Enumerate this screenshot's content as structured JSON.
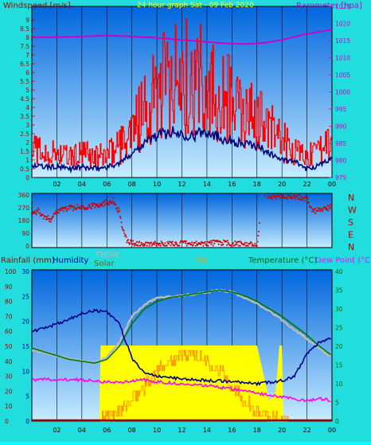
{
  "colors": {
    "background": "#22dddd",
    "plot_top": "#0088ee",
    "plot_bottom": "#bfe6ff",
    "wind_avg": "#00007a",
    "wind_gust": "#ff0000",
    "barometer": "#cc00cc",
    "direction": "#cc0000",
    "humidity": "#00008c",
    "temperature": "#007700",
    "dew_point": "#ff00ff",
    "thsw": "#bbbbbb",
    "solar": "#ffff00",
    "uv": "#ff9900",
    "rainfall": "#990000"
  },
  "chart_data": [
    {
      "type": "line",
      "title": "24 hour graph Sat - 09 Feb 2020",
      "ylabel_left": "Windspeed [m/s]",
      "ylabel_right": "Barometer [hpa]",
      "ylim_left": [
        0,
        9.5
      ],
      "ylim_right": [
        975,
        1025
      ],
      "yticks_left": [
        "0",
        "0.5",
        "1",
        "1.5",
        "2",
        "2.5",
        "3",
        "3.5",
        "4",
        "4.5",
        "5",
        "5.5",
        "6",
        "6.5",
        "7",
        "7.5",
        "8",
        "8.5",
        "9"
      ],
      "yticks_right": [
        "975",
        "980",
        "985",
        "990",
        "995",
        "1000",
        "1005",
        "1010",
        "1015",
        "1020",
        "1025"
      ],
      "x_ticks": [
        "02",
        "04",
        "06",
        "08",
        "10",
        "12",
        "14",
        "16",
        "18",
        "20",
        "22",
        "00"
      ],
      "x_range_hours": [
        0,
        24
      ],
      "series": [
        {
          "name": "Barometer",
          "axis": "right",
          "x": [
            0,
            2,
            4,
            6,
            8,
            10,
            12,
            14,
            15.5,
            17,
            18.5,
            20,
            22,
            24
          ],
          "values": [
            1016,
            1016,
            1016.2,
            1016.5,
            1016.2,
            1015.8,
            1015.2,
            1014.6,
            1014.2,
            1014.0,
            1014.3,
            1015.2,
            1017.0,
            1018.2
          ]
        },
        {
          "name": "Windspeed",
          "axis": "left",
          "x": [
            0,
            1,
            2,
            3,
            4,
            5,
            6,
            7,
            8,
            9,
            10,
            11,
            12,
            13,
            14,
            15,
            16,
            17,
            18,
            19,
            20,
            21,
            22,
            23,
            24
          ],
          "values": [
            0.7,
            0.6,
            0.6,
            0.5,
            0.6,
            0.5,
            0.6,
            0.8,
            1.4,
            2.0,
            2.4,
            2.6,
            2.5,
            2.4,
            2.7,
            2.3,
            2.1,
            1.9,
            1.8,
            1.4,
            1.0,
            0.9,
            0.5,
            0.7,
            1.1
          ]
        },
        {
          "name": "Gust",
          "axis": "left",
          "x": [
            0,
            1,
            2,
            3,
            4,
            5,
            6,
            7,
            8,
            9,
            10,
            11,
            12,
            13,
            14,
            15,
            16,
            17,
            18,
            19,
            20,
            21,
            22,
            23,
            24
          ],
          "values": [
            1.8,
            1.6,
            1.7,
            1.4,
            1.6,
            1.4,
            1.6,
            2.0,
            3.3,
            4.3,
            5.6,
            6.6,
            7.0,
            6.2,
            6.8,
            5.6,
            5.0,
            4.2,
            3.8,
            3.2,
            2.4,
            1.9,
            1.4,
            1.7,
            2.2
          ]
        }
      ]
    },
    {
      "type": "scatter",
      "ylabel_right_letters": [
        "N",
        "W",
        "S",
        "E",
        "N"
      ],
      "yticks_left": [
        "0",
        "90",
        "180",
        "270",
        "360"
      ],
      "ylim": [
        0,
        360
      ],
      "x_range_hours": [
        0,
        24
      ],
      "series": [
        {
          "name": "Wind direction",
          "x": [
            0,
            0.5,
            1,
            1.5,
            2,
            3,
            4,
            5,
            6,
            6.5,
            7,
            7.3,
            7.6,
            8,
            9,
            10,
            11,
            12,
            13,
            14,
            15,
            16,
            17,
            18,
            18.5,
            19,
            20,
            21,
            22,
            22.5,
            23,
            24
          ],
          "values": [
            230,
            250,
            200,
            190,
            250,
            270,
            275,
            285,
            310,
            320,
            240,
            100,
            40,
            20,
            10,
            12,
            15,
            18,
            12,
            20,
            25,
            15,
            10,
            5,
            350,
            345,
            355,
            350,
            330,
            240,
            260,
            275
          ]
        }
      ]
    },
    {
      "type": "line",
      "labels": {
        "rainfall": "Rainfall (mm)",
        "humidity": "Humidity",
        "thsw": "THSW",
        "solar": "Solar",
        "uv": "UV",
        "temperature": "Temperature (°C)",
        "dew_point": "Dew Point (°C)"
      },
      "yticks_rain": [
        "0",
        "10",
        "20",
        "30",
        "40",
        "50",
        "60",
        "70",
        "80",
        "90",
        "100"
      ],
      "yticks_hum": [
        "0",
        "5",
        "10",
        "15",
        "20",
        "25",
        "30"
      ],
      "yticks_temp": [
        "0",
        "5",
        "10",
        "15",
        "20",
        "25",
        "30",
        "35",
        "40"
      ],
      "ylim_humidity": [
        0,
        100
      ],
      "ylim_temperature": [
        0,
        40
      ],
      "x_range_hours": [
        0,
        24
      ],
      "series": [
        {
          "name": "Humidity",
          "x": [
            0,
            1,
            2,
            3,
            4,
            5,
            6,
            7,
            8,
            9,
            10,
            11,
            12,
            13,
            14,
            15,
            16,
            17,
            18,
            19,
            20,
            21,
            22,
            23,
            24
          ],
          "values": [
            60,
            62,
            65,
            68,
            72,
            74,
            73,
            65,
            42,
            32,
            30,
            29,
            28,
            28,
            27,
            27,
            26,
            26,
            25,
            26,
            27,
            30,
            45,
            53,
            55
          ]
        },
        {
          "name": "Temperature",
          "x": [
            0,
            1,
            2,
            3,
            4,
            5,
            6,
            7,
            8,
            9,
            10,
            11,
            12,
            13,
            14,
            15,
            16,
            17,
            18,
            19,
            20,
            21,
            22,
            23,
            24
          ],
          "values": [
            19.5,
            18.5,
            17.5,
            16.5,
            16,
            15.5,
            16.5,
            20,
            26,
            30,
            32,
            33,
            33.5,
            34,
            34.5,
            35,
            34.5,
            33.5,
            32,
            30,
            28,
            25.5,
            23,
            20,
            17.5
          ]
        },
        {
          "name": "THSW",
          "x": [
            0,
            2,
            4,
            5,
            6,
            7,
            8,
            9,
            10,
            12,
            14,
            15,
            16,
            17,
            18,
            19,
            20,
            21,
            22,
            23,
            24
          ],
          "values": [
            19,
            17.5,
            16,
            15.5,
            17,
            21,
            28,
            31,
            33,
            33.5,
            34.5,
            35,
            34.5,
            33,
            31.5,
            29.5,
            27,
            24.5,
            22,
            19.5,
            17
          ]
        },
        {
          "name": "Dew Point",
          "x": [
            0,
            2,
            4,
            6,
            7,
            8,
            9,
            10,
            11,
            12,
            13,
            14,
            15,
            16,
            17,
            18,
            19,
            20,
            21,
            22,
            23,
            24
          ],
          "values": [
            11,
            11.2,
            11,
            10.5,
            10.3,
            10.8,
            11,
            10.5,
            10.2,
            10,
            9.8,
            9.5,
            9,
            8.5,
            8,
            7.5,
            7,
            6.5,
            5.8,
            5.5,
            6,
            5.5
          ]
        },
        {
          "name": "Solar",
          "x": [
            0,
            5.4,
            5.5,
            6,
            6.5,
            7,
            7.5,
            8,
            9,
            10,
            11,
            12,
            13,
            14,
            15,
            16,
            17,
            17.5,
            18,
            19,
            19.5,
            19.8,
            20,
            20.1,
            24
          ],
          "values": [
            0,
            0,
            15,
            15,
            15,
            15,
            15,
            15,
            15,
            15,
            15,
            15,
            15,
            15,
            15,
            15,
            15,
            15,
            15,
            4,
            6,
            15,
            15,
            0,
            0
          ]
        },
        {
          "name": "UV",
          "x": [
            0,
            5.5,
            6,
            7,
            8,
            9,
            10,
            11,
            12,
            13,
            14,
            15,
            16,
            17,
            18,
            19,
            20,
            24
          ],
          "values": [
            0,
            0,
            0.5,
            2,
            4,
            7,
            10,
            12,
            13,
            13,
            12,
            10,
            7,
            4,
            2,
            0.5,
            0,
            0
          ]
        },
        {
          "name": "Rainfall",
          "x": [
            0,
            24
          ],
          "values": [
            0,
            0
          ]
        }
      ]
    }
  ]
}
